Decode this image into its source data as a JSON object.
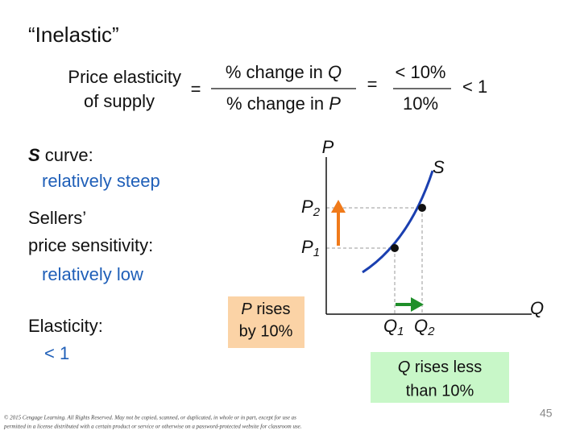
{
  "header": {
    "title": "“Inelastic”"
  },
  "formula": {
    "lhs_line1": "Price elasticity",
    "lhs_line2": "of supply",
    "eq1": "=",
    "numerator_text": "% change in ",
    "numerator_var": "Q",
    "denominator_text": "% change in ",
    "denominator_var": "P",
    "eq2": "=",
    "ratio_numerator": "< 10%",
    "ratio_denominator": "10%",
    "result": "< 1"
  },
  "notes": {
    "curve_var": "S",
    "curve_text": " curve:",
    "curve_desc": "relatively steep",
    "sellers_line1": "Sellers’",
    "sellers_line2": "price sensitivity:",
    "sellers_desc": "relatively low",
    "elasticity_label": "Elasticity:",
    "elasticity_value": "< 1"
  },
  "graph": {
    "y_axis": "P",
    "x_axis": "Q",
    "curve": "S",
    "p2": "P",
    "p2_sub": "2",
    "p1": "P",
    "p1_sub": "1",
    "q1": "Q",
    "q1_sub": "1",
    "q2": "Q",
    "q2_sub": "2"
  },
  "price_box": {
    "var": "P",
    "line1_rest": " rises",
    "line2": "by 10%"
  },
  "quantity_box": {
    "var": "Q",
    "line1_rest": " rises less",
    "line2": "than 10%"
  },
  "footer": {
    "copyright_line1": "© 2015 Cengage Learning. All Rights Reserved. May not be copied, scanned, or duplicated, in whole or in part, except for use as",
    "copyright_line2": "permitted in a license distributed with a certain product or service or otherwise on a password-protected website for classroom use.",
    "slide_number": "45"
  }
}
